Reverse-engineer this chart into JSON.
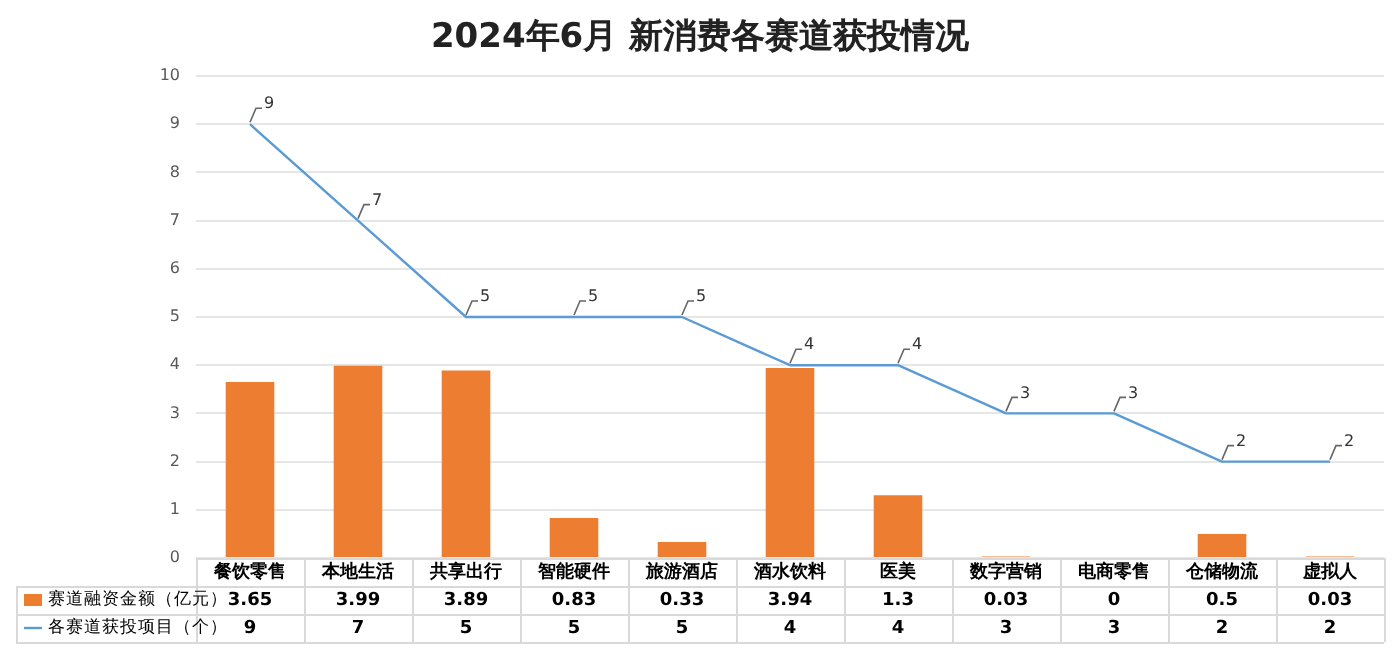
{
  "chart_data": {
    "type": "bar",
    "title": "2024年6月 新消费各赛道获投情况",
    "categories": [
      "餐饮零售",
      "本地生活",
      "共享出行",
      "智能硬件",
      "旅游酒店",
      "酒水饮料",
      "医美",
      "数字营销",
      "电商零售",
      "仓储物流",
      "虚拟人"
    ],
    "series": [
      {
        "name": "赛道融资金额（亿元）",
        "color": "#ed7d31",
        "values": [
          3.65,
          3.99,
          3.89,
          0.83,
          0.33,
          3.94,
          1.3,
          0.03,
          0,
          0.5,
          0.03
        ]
      },
      {
        "name": "各赛道获投项目（个）",
        "type": "line",
        "color": "#5b9bd5",
        "values": [
          9,
          7,
          5,
          5,
          5,
          4,
          4,
          3,
          3,
          2,
          2
        ]
      }
    ],
    "ylim": [
      0,
      10
    ],
    "yticks": [
      0,
      1,
      2,
      3,
      4,
      5,
      6,
      7,
      8,
      9,
      10
    ],
    "grid": "y",
    "legend": "bottom",
    "data_labels": true,
    "marker": "none",
    "annotations": [
      {
        "text": "9",
        "x": "餐饮零售",
        "y": 9
      },
      {
        "text": "7",
        "x": "本地生活",
        "y": 7
      },
      {
        "text": "5",
        "x": "共享出行",
        "y": 5
      },
      {
        "text": "5",
        "x": "智能硬件",
        "y": 5
      },
      {
        "text": "5",
        "x": "旅游酒店",
        "y": 5
      },
      {
        "text": "4",
        "x": "酒水饮料",
        "y": 4
      },
      {
        "text": "4",
        "x": "医美",
        "y": 4
      },
      {
        "text": "3",
        "x": "数字营销",
        "y": 3
      },
      {
        "text": "3",
        "x": "电商零售",
        "y": 3
      },
      {
        "text": "2",
        "x": "仓储物流",
        "y": 2
      },
      {
        "text": "2",
        "x": "虚拟人",
        "y": 2
      }
    ]
  }
}
